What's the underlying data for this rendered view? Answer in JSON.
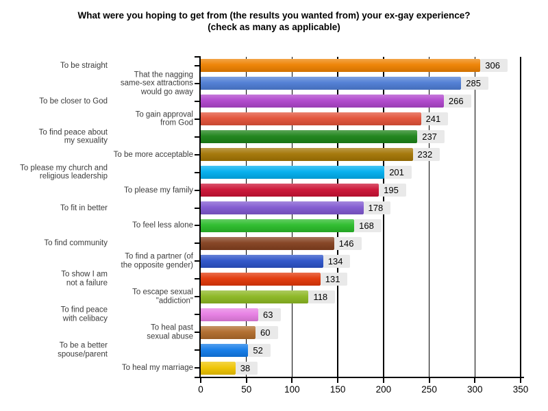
{
  "title": {
    "line1": "What were you hoping to get from (the results you wanted from) your ex-gay experience?",
    "line2": "(check as many as applicable)"
  },
  "chart_data": {
    "type": "bar",
    "orientation": "horizontal",
    "title": "What were you hoping to get from (the results you wanted from) your ex-gay experience? (check as many as applicable)",
    "xlabel": "",
    "ylabel": "",
    "xlim": [
      0,
      350
    ],
    "x_ticks": [
      0,
      50,
      100,
      150,
      200,
      250,
      300,
      350
    ],
    "grid": true,
    "legend": false,
    "value_labels_shown": true,
    "categories": [
      "To be straight",
      "That the nagging\nsame-sex attractions\nwould go away",
      "To be closer to God",
      "To gain approval\nfrom God",
      "To find peace about\nmy sexuality",
      "To be more acceptable",
      "To please my church and\nreligious leadership",
      "To please my family",
      "To fit in better",
      "To feel less alone",
      "To find community",
      "To find a partner (of\nthe opposite gender)",
      "To show I am\nnot a failure",
      "To escape sexual\n\"addiction\"",
      "To find peace\nwith celibacy",
      "To heal past\nsexual abuse",
      "To be a better\nspouse/parent",
      "To heal my marriage"
    ],
    "values": [
      306,
      285,
      266,
      241,
      237,
      232,
      201,
      195,
      178,
      168,
      146,
      134,
      131,
      118,
      63,
      60,
      52,
      38
    ],
    "bar_colors": [
      "#ee8100",
      "#4e7dd4",
      "#af45cc",
      "#e25138",
      "#1c8318",
      "#a37504",
      "#00aeee",
      "#cb1134",
      "#8058d0",
      "#2abb2a",
      "#83401f",
      "#2b52c8",
      "#e23708",
      "#8cb822",
      "#e77ee3",
      "#b06b2b",
      "#117ae8",
      "#efc400"
    ]
  },
  "style": {
    "value_chip_bg": "#e9e9e9",
    "axis_color": "#000000",
    "label_color": "#3b3b3b",
    "background": "#ffffff"
  }
}
